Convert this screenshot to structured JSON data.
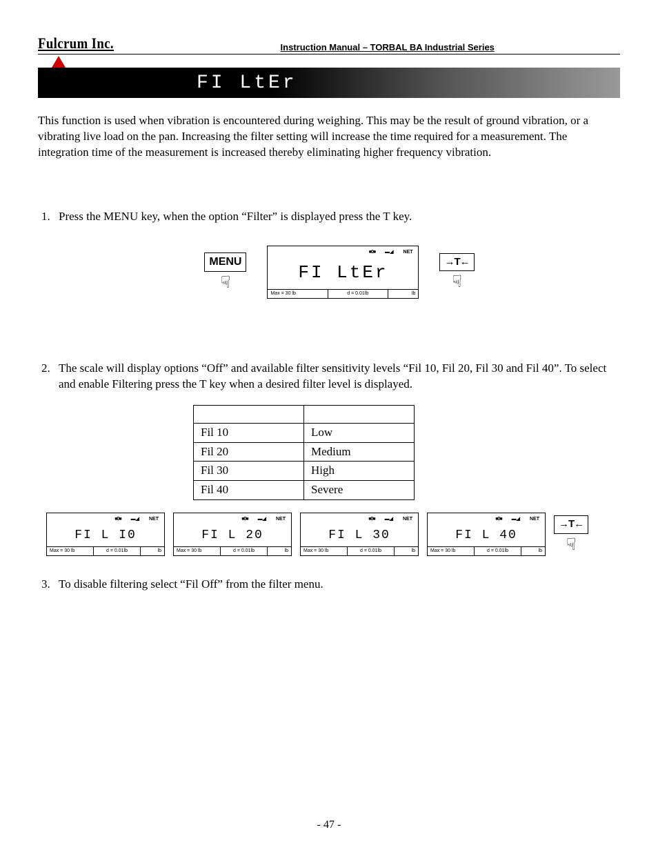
{
  "header": {
    "company": "Fulcrum Inc.",
    "manual_title": "Instruction Manual – TORBAL BA Industrial Series"
  },
  "section": {
    "title_display": "FI LtEr"
  },
  "intro_text": "This function is used when vibration is encountered during weighing.  This may be the result of ground vibration, or a vibrating live load on the pan.  Increasing the filter setting will increase the time required for a measurement.  The integration time of the measurement is increased thereby eliminating higher frequency vibration.",
  "steps": {
    "s1": "Press the MENU key, when the option “Filter” is displayed press the T key.",
    "s2": "The scale will display options “Off” and available filter sensitivity levels “Fil 10, Fil 20, Fil 30 and Fil 40”.  To select and enable Filtering press the T key when a desired filter level is displayed.",
    "s3": "To disable filtering select “Fil Off” from the filter menu."
  },
  "buttons": {
    "menu_label": "MENU",
    "t_label": "→T←"
  },
  "lcd": {
    "ind1": "■0■",
    "ind2": "▬◢",
    "ind3": "NET",
    "max_label": "Max  =  30  lb",
    "d_label": "d  =  0.01lb",
    "unit": "lb",
    "main_filter": "FI LtEr",
    "fil10": "FI L   I0",
    "fil20": "FI L  20",
    "fil30": "FI L  30",
    "fil40": "FI L  40"
  },
  "table": {
    "r1c1": "Fil 10",
    "r1c2": "Low",
    "r2c1": "Fil 20",
    "r2c2": "Medium",
    "r3c1": "Fil 30",
    "r3c2": "High",
    "r4c1": "Fil 40",
    "r4c2": "Severe"
  },
  "page_number": "- 47 -"
}
